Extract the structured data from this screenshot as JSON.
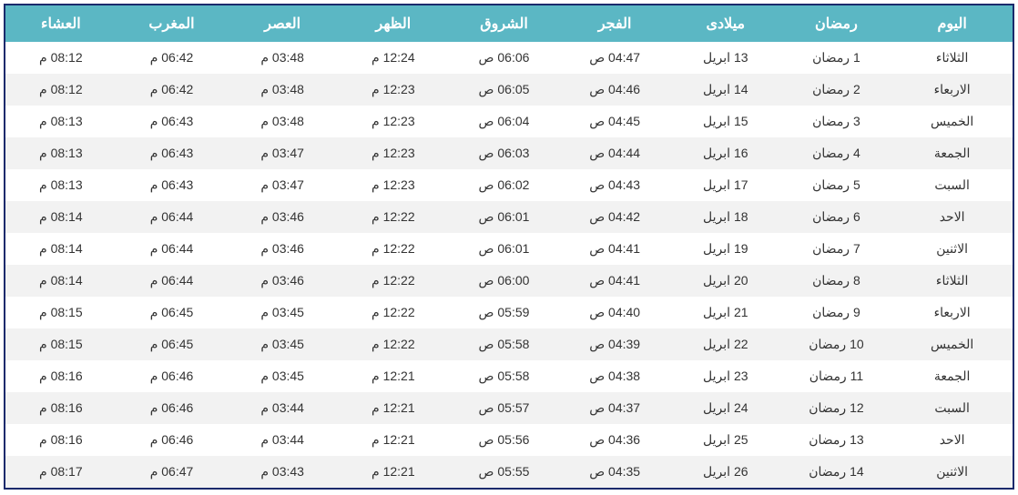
{
  "table": {
    "header_bg": "#5bb7c4",
    "header_fg": "#ffffff",
    "row_odd_bg": "#ffffff",
    "row_even_bg": "#f2f2f2",
    "border_color": "#1a2a6c",
    "cell_fg": "#333333",
    "header_fontsize": 16,
    "cell_fontsize": 14,
    "columns": [
      "اليوم",
      "رمضان",
      "ميلادى",
      "الفجر",
      "الشروق",
      "الظهر",
      "العصر",
      "المغرب",
      "العشاء"
    ],
    "rows": [
      [
        "الثلاثاء",
        "1 رمضان",
        "13 ابريل",
        "04:47 ص",
        "06:06 ص",
        "12:24 م",
        "03:48 م",
        "06:42 م",
        "08:12 م"
      ],
      [
        "الاربعاء",
        "2 رمضان",
        "14 ابريل",
        "04:46 ص",
        "06:05 ص",
        "12:23 م",
        "03:48 م",
        "06:42 م",
        "08:12 م"
      ],
      [
        "الخميس",
        "3 رمضان",
        "15 ابريل",
        "04:45 ص",
        "06:04 ص",
        "12:23 م",
        "03:48 م",
        "06:43 م",
        "08:13 م"
      ],
      [
        "الجمعة",
        "4 رمضان",
        "16 ابريل",
        "04:44 ص",
        "06:03 ص",
        "12:23 م",
        "03:47 م",
        "06:43 م",
        "08:13 م"
      ],
      [
        "السبت",
        "5 رمضان",
        "17 ابريل",
        "04:43 ص",
        "06:02 ص",
        "12:23 م",
        "03:47 م",
        "06:43 م",
        "08:13 م"
      ],
      [
        "الاحد",
        "6 رمضان",
        "18 ابريل",
        "04:42 ص",
        "06:01 ص",
        "12:22 م",
        "03:46 م",
        "06:44 م",
        "08:14 م"
      ],
      [
        "الاثنين",
        "7 رمضان",
        "19 ابريل",
        "04:41 ص",
        "06:01 ص",
        "12:22 م",
        "03:46 م",
        "06:44 م",
        "08:14 م"
      ],
      [
        "الثلاثاء",
        "8 رمضان",
        "20 ابريل",
        "04:41 ص",
        "06:00 ص",
        "12:22 م",
        "03:46 م",
        "06:44 م",
        "08:14 م"
      ],
      [
        "الاربعاء",
        "9 رمضان",
        "21 ابريل",
        "04:40 ص",
        "05:59 ص",
        "12:22 م",
        "03:45 م",
        "06:45 م",
        "08:15 م"
      ],
      [
        "الخميس",
        "10 رمضان",
        "22 ابريل",
        "04:39 ص",
        "05:58 ص",
        "12:22 م",
        "03:45 م",
        "06:45 م",
        "08:15 م"
      ],
      [
        "الجمعة",
        "11 رمضان",
        "23 ابريل",
        "04:38 ص",
        "05:58 ص",
        "12:21 م",
        "03:45 م",
        "06:46 م",
        "08:16 م"
      ],
      [
        "السبت",
        "12 رمضان",
        "24 ابريل",
        "04:37 ص",
        "05:57 ص",
        "12:21 م",
        "03:44 م",
        "06:46 م",
        "08:16 م"
      ],
      [
        "الاحد",
        "13 رمضان",
        "25 ابريل",
        "04:36 ص",
        "05:56 ص",
        "12:21 م",
        "03:44 م",
        "06:46 م",
        "08:16 م"
      ],
      [
        "الاثنين",
        "14 رمضان",
        "26 ابريل",
        "04:35 ص",
        "05:55 ص",
        "12:21 م",
        "03:43 م",
        "06:47 م",
        "08:17 م"
      ]
    ]
  }
}
